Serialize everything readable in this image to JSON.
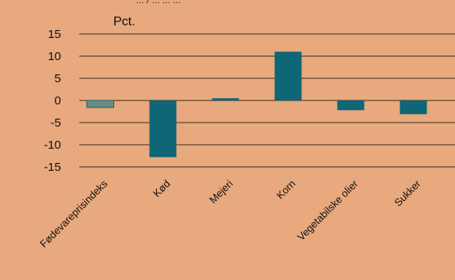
{
  "chart_data": {
    "type": "bar",
    "unit_label": "Pct.",
    "top_text": "... / ... ... ...",
    "categories": [
      "Fødevareprisindeks",
      "Kød",
      "Mejeri",
      "Korn",
      "Vegetabilske olier",
      "Sukker"
    ],
    "values": [
      -1.6,
      -12.8,
      0.5,
      11.0,
      -2.2,
      -3.1
    ],
    "ylim": [
      -15,
      15
    ],
    "yticks": [
      15,
      10,
      5,
      0,
      -5,
      -10,
      -15
    ],
    "grid": true,
    "colors": {
      "background": "#e8a97e",
      "bar": "#0e6677",
      "first_bar": "#6e8c82",
      "grid": "#3a2a20"
    }
  }
}
